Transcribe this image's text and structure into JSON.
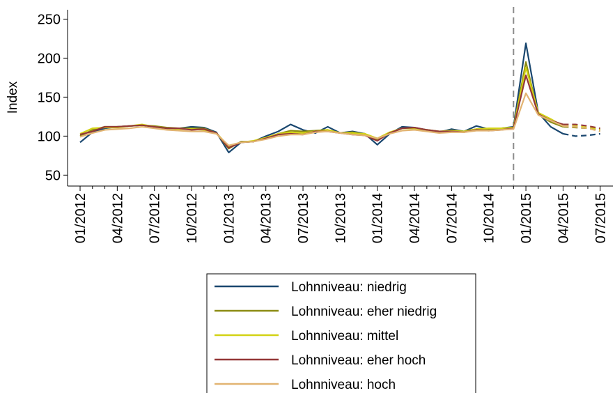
{
  "chart_data": {
    "type": "line",
    "y_label": "Index",
    "categories": [
      "01/2012",
      null,
      null,
      "04/2012",
      null,
      null,
      "07/2012",
      null,
      null,
      "10/2012",
      null,
      null,
      "01/2013",
      null,
      null,
      "04/2013",
      null,
      null,
      "07/2013",
      null,
      null,
      "10/2013",
      null,
      null,
      "01/2014",
      null,
      null,
      "04/2014",
      null,
      null,
      "07/2014",
      null,
      null,
      "10/2014",
      null,
      null,
      "01/2015",
      null,
      null,
      "04/2015",
      null,
      null,
      "07/2015"
    ],
    "vline_at": 35,
    "dashed_from": 39,
    "ylim": [
      36,
      262
    ],
    "yticks": [
      50,
      100,
      150,
      200,
      250
    ],
    "grid": false,
    "series": [
      {
        "name": "Lohnniveau: niedrig",
        "color": "#1a476f",
        "values": [
          92,
          105,
          110,
          112,
          113,
          114,
          112,
          110,
          110,
          112,
          111,
          105,
          79,
          92,
          93,
          100,
          106,
          115,
          108,
          104,
          112,
          104,
          106,
          103,
          89,
          103,
          112,
          111,
          108,
          105,
          109,
          106,
          113,
          109,
          110,
          112,
          219,
          130,
          112,
          103,
          100,
          101,
          103
        ]
      },
      {
        "name": "Lohnniveau: eher niedrig",
        "color": "#8c8c14",
        "values": [
          100,
          108,
          112,
          112,
          113,
          114,
          113,
          111,
          110,
          110,
          110,
          104,
          84,
          93,
          93,
          98,
          103,
          107,
          106,
          107,
          108,
          104,
          105,
          102,
          95,
          104,
          110,
          110,
          108,
          106,
          107,
          106,
          109,
          109,
          110,
          111,
          195,
          128,
          118,
          112,
          111,
          110,
          108
        ]
      },
      {
        "name": "Lohnniveau: mittel",
        "color": "#d2d214",
        "values": [
          103,
          110,
          111,
          111,
          113,
          115,
          112,
          110,
          109,
          109,
          108,
          104,
          87,
          92,
          94,
          98,
          103,
          105,
          104,
          106,
          108,
          104,
          104,
          103,
          97,
          105,
          110,
          110,
          108,
          106,
          107,
          106,
          109,
          110,
          110,
          111,
          188,
          130,
          122,
          113,
          113,
          111,
          109
        ]
      },
      {
        "name": "Lohnniveau: eher hoch",
        "color": "#943737",
        "values": [
          102,
          106,
          112,
          112,
          113,
          114,
          112,
          110,
          110,
          108,
          109,
          104,
          85,
          92,
          93,
          97,
          102,
          103,
          102,
          106,
          106,
          104,
          102,
          101,
          94,
          104,
          110,
          111,
          108,
          106,
          106,
          105,
          108,
          107,
          108,
          110,
          178,
          128,
          120,
          115,
          115,
          113,
          110
        ]
      },
      {
        "name": "Lohnniveau: hoch",
        "color": "#e2b472",
        "values": [
          99,
          104,
          108,
          109,
          110,
          112,
          110,
          108,
          107,
          106,
          106,
          103,
          88,
          92,
          93,
          96,
          100,
          102,
          102,
          105,
          106,
          104,
          102,
          101,
          97,
          103,
          107,
          108,
          106,
          104,
          105,
          105,
          107,
          107,
          108,
          109,
          155,
          127,
          120,
          113,
          112,
          110,
          106
        ]
      }
    ]
  }
}
